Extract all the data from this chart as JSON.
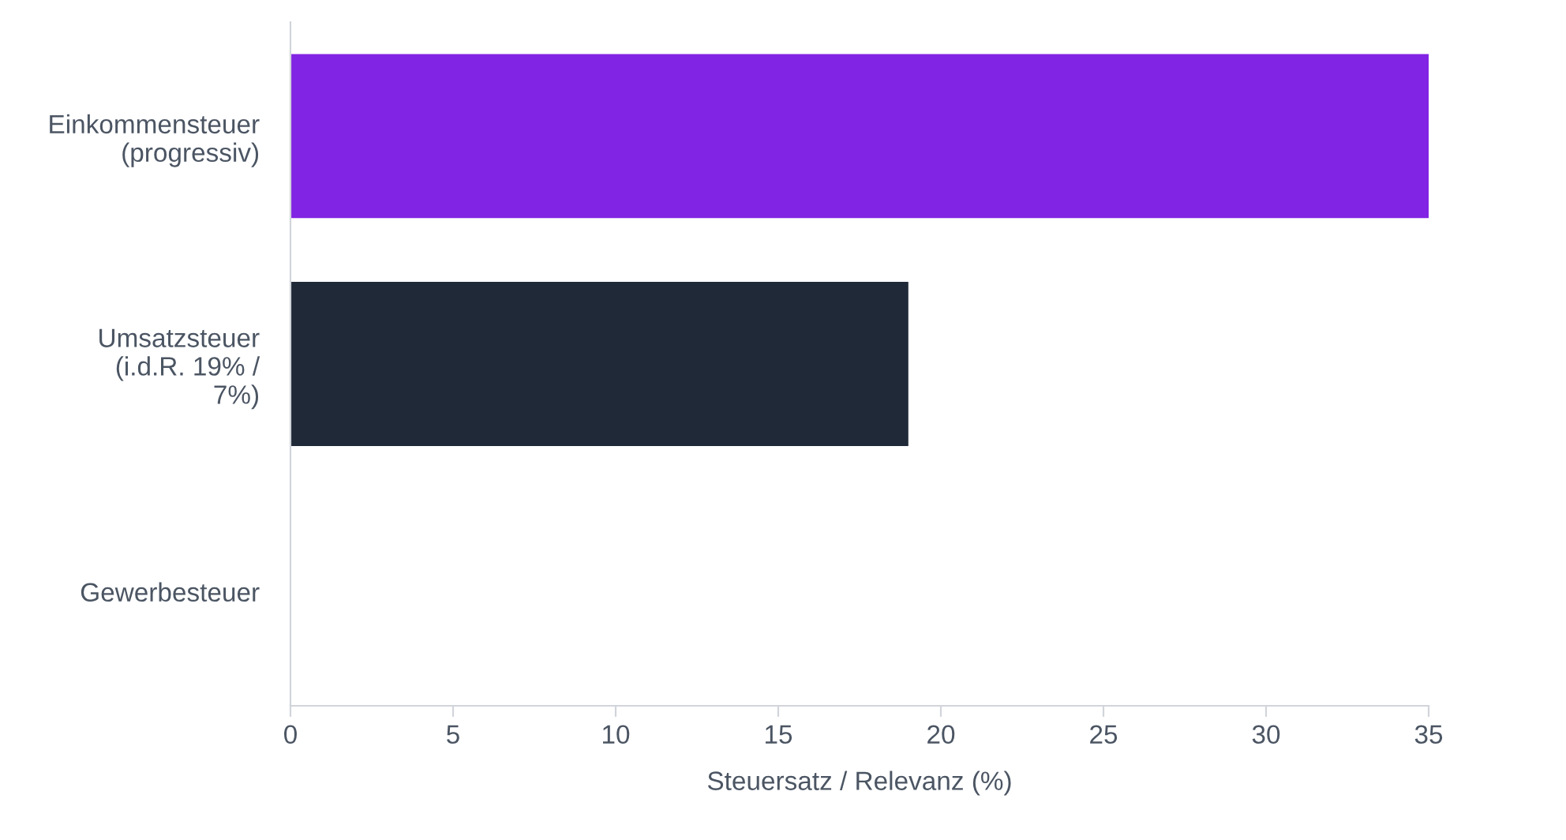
{
  "chart_data": {
    "type": "bar",
    "orientation": "horizontal",
    "xlabel": "Steuersatz / Relevanz (%)",
    "categories": [
      "Einkommensteuer\n(progressiv)",
      "Umsatzsteuer\n(i.d.R. 19% /\n7%)",
      "Gewerbesteuer"
    ],
    "values": [
      35,
      19,
      null
    ],
    "colors": [
      "#8224e3",
      "#1f2937",
      "#1f2937"
    ],
    "xlim": [
      0,
      35
    ],
    "xticks": [
      0,
      5,
      10,
      15,
      20,
      25,
      30,
      35
    ],
    "grid": false,
    "legend": false
  }
}
